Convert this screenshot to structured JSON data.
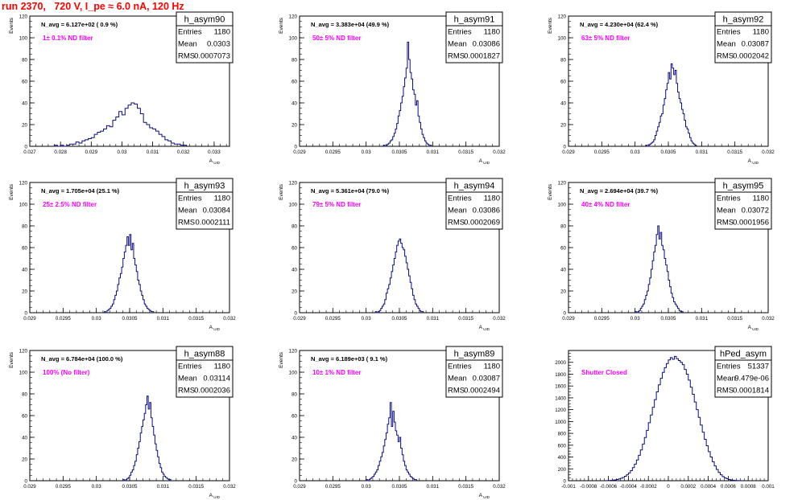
{
  "page": {
    "title": "run 2370,   720 V, I_pe ≈ 6.0 nA, 120 Hz"
  },
  "colors": {
    "hist": "#0b0b80",
    "note": "#ff00ff",
    "title": "#ff0000"
  },
  "chart_data": [
    {
      "type": "histogram",
      "hist_name": "h_asym90",
      "stats": {
        "entries": "1180",
        "mean": "0.0303",
        "rms": "0.0007073"
      },
      "navg": "N_avg = 6.127e+02 ( 0.9 %)",
      "filter_note": "1± 0.1% ND filter",
      "ylabel": "Events",
      "xlabel": "A_UID",
      "xlim": [
        0.027,
        0.0335
      ],
      "ylim": [
        0,
        120
      ],
      "yticks": [
        0,
        20,
        40,
        60,
        80,
        100,
        120
      ],
      "xticks": [
        0.027,
        0.028,
        0.029,
        0.03,
        0.031,
        0.032,
        0.033
      ],
      "xtick_labels": [
        "0.027",
        "0.028",
        "0.029",
        "0.03",
        "0.031",
        "0.032",
        "0.033"
      ],
      "bin_width": 0.0001,
      "x_start": 0.0278,
      "values": [
        1,
        0,
        1,
        0,
        1,
        2,
        2,
        4,
        3,
        5,
        6,
        7,
        8,
        11,
        13,
        14,
        16,
        19,
        18,
        24,
        27,
        32,
        29,
        35,
        38,
        40,
        39,
        35,
        30,
        22,
        20,
        17,
        16,
        14,
        11,
        9,
        6,
        5,
        3,
        2,
        2,
        1,
        1
      ]
    },
    {
      "type": "histogram",
      "hist_name": "h_asym91",
      "stats": {
        "entries": "1180",
        "mean": "0.03086",
        "rms": "0.0001827"
      },
      "navg": "N_avg = 3.383e+04 (49.9 %)",
      "filter_note": "50± 5% ND filter",
      "ylabel": "Events",
      "xlabel": "A_UID",
      "xlim": [
        0.029,
        0.032
      ],
      "ylim": [
        0,
        120
      ],
      "yticks": [
        0,
        20,
        40,
        60,
        80,
        100,
        120
      ],
      "xticks": [
        0.029,
        0.0295,
        0.03,
        0.0305,
        0.031,
        0.0315,
        0.032
      ],
      "xtick_labels": [
        "0.029",
        "0.0295",
        "0.03",
        "0.0305",
        "0.031",
        "0.0315",
        "0.032"
      ],
      "bin_width": 2e-05,
      "x_start": 0.03026,
      "values": [
        1,
        0,
        1,
        2,
        3,
        5,
        6,
        9,
        12,
        16,
        21,
        28,
        33,
        40,
        46,
        55,
        63,
        72,
        96,
        80,
        68,
        62,
        52,
        48,
        38,
        42,
        28,
        22,
        16,
        11,
        8,
        5,
        3,
        2,
        1,
        1
      ]
    },
    {
      "type": "histogram",
      "hist_name": "h_asym92",
      "stats": {
        "entries": "1180",
        "mean": "0.03087",
        "rms": "0.0002042"
      },
      "navg": "N_avg = 4.230e+04 (62.4 %)",
      "filter_note": "63± 5% ND filter",
      "ylabel": "Events",
      "xlabel": "A_UID",
      "xlim": [
        0.029,
        0.032
      ],
      "ylim": [
        0,
        120
      ],
      "yticks": [
        0,
        20,
        40,
        60,
        80,
        100,
        120
      ],
      "xticks": [
        0.029,
        0.0295,
        0.03,
        0.0305,
        0.031,
        0.0315,
        0.032
      ],
      "xtick_labels": [
        "0.029",
        "0.0295",
        "0.03",
        "0.0305",
        "0.031",
        "0.0315",
        "0.032"
      ],
      "bin_width": 2e-05,
      "x_start": 0.03016,
      "values": [
        1,
        0,
        1,
        2,
        3,
        4,
        6,
        10,
        14,
        18,
        22,
        28,
        30,
        38,
        44,
        52,
        58,
        68,
        62,
        76,
        72,
        66,
        70,
        58,
        50,
        44,
        40,
        34,
        30,
        24,
        18,
        16,
        12,
        8,
        5,
        3,
        2,
        1
      ]
    },
    {
      "type": "histogram",
      "hist_name": "h_asym93",
      "stats": {
        "entries": "1180",
        "mean": "0.03084",
        "rms": "0.0002111"
      },
      "navg": "N_avg = 1.705e+04 (25.1 %)",
      "filter_note": "25± 2.5% ND filter",
      "ylabel": "Events",
      "xlabel": "A_UID",
      "xlim": [
        0.029,
        0.032
      ],
      "ylim": [
        0,
        120
      ],
      "yticks": [
        0,
        20,
        40,
        60,
        80,
        100,
        120
      ],
      "xticks": [
        0.029,
        0.0295,
        0.03,
        0.0305,
        0.031,
        0.0315,
        0.032
      ],
      "xtick_labels": [
        "0.029",
        "0.0295",
        "0.03",
        "0.0305",
        "0.031",
        "0.0315",
        "0.032"
      ],
      "bin_width": 2e-05,
      "x_start": 0.03012,
      "values": [
        1,
        0,
        2,
        3,
        4,
        6,
        8,
        12,
        16,
        20,
        26,
        32,
        36,
        42,
        50,
        56,
        62,
        70,
        62,
        72,
        58,
        64,
        50,
        44,
        38,
        30,
        26,
        20,
        16,
        12,
        8,
        6,
        4,
        3,
        2,
        1,
        1
      ]
    },
    {
      "type": "histogram",
      "hist_name": "h_asym94",
      "stats": {
        "entries": "1180",
        "mean": "0.03086",
        "rms": "0.0002069"
      },
      "navg": "N_avg = 5.361e+04 (79.0 %)",
      "filter_note": "79± 5% ND filter",
      "ylabel": "Events",
      "xlabel": "A_UID",
      "xlim": [
        0.029,
        0.032
      ],
      "ylim": [
        0,
        120
      ],
      "yticks": [
        0,
        20,
        40,
        60,
        80,
        100,
        120
      ],
      "xticks": [
        0.029,
        0.0295,
        0.03,
        0.0305,
        0.031,
        0.0315,
        0.032
      ],
      "xtick_labels": [
        "0.029",
        "0.0295",
        "0.03",
        "0.0305",
        "0.031",
        "0.0315",
        "0.032"
      ],
      "bin_width": 2e-05,
      "x_start": 0.03014,
      "values": [
        1,
        0,
        1,
        2,
        4,
        6,
        8,
        12,
        18,
        22,
        26,
        32,
        38,
        44,
        50,
        56,
        62,
        66,
        68,
        64,
        60,
        58,
        52,
        46,
        40,
        34,
        28,
        22,
        16,
        12,
        8,
        6,
        4,
        2,
        1,
        1
      ]
    },
    {
      "type": "histogram",
      "hist_name": "h_asym95",
      "stats": {
        "entries": "1180",
        "mean": "0.03072",
        "rms": "0.0001956"
      },
      "navg": "N_avg = 2.694e+04 (39.7 %)",
      "filter_note": "40± 4% ND filter",
      "ylabel": "Events",
      "xlabel": "A_UID",
      "xlim": [
        0.029,
        0.032
      ],
      "ylim": [
        0,
        120
      ],
      "yticks": [
        0,
        20,
        40,
        60,
        80,
        100,
        120
      ],
      "xticks": [
        0.029,
        0.0295,
        0.03,
        0.0305,
        0.031,
        0.0315,
        0.032
      ],
      "xtick_labels": [
        "0.029",
        "0.0295",
        "0.03",
        "0.0305",
        "0.031",
        "0.0315",
        "0.032"
      ],
      "bin_width": 2e-05,
      "x_start": 0.03,
      "values": [
        1,
        0,
        1,
        2,
        4,
        6,
        8,
        12,
        16,
        20,
        26,
        32,
        40,
        48,
        56,
        62,
        72,
        80,
        68,
        74,
        62,
        58,
        50,
        44,
        38,
        30,
        24,
        18,
        14,
        10,
        8,
        6,
        4,
        2,
        1,
        1
      ]
    },
    {
      "type": "histogram",
      "hist_name": "h_asym88",
      "stats": {
        "entries": "1180",
        "mean": "0.03114",
        "rms": "0.0002036"
      },
      "navg": "N_avg = 6.784e+04 (100.0 %)",
      "filter_note": "100% (No filter)",
      "ylabel": "Events",
      "xlabel": "A_UID",
      "xlim": [
        0.029,
        0.032
      ],
      "ylim": [
        0,
        120
      ],
      "yticks": [
        0,
        20,
        40,
        60,
        80,
        100,
        120
      ],
      "xticks": [
        0.029,
        0.0295,
        0.03,
        0.0305,
        0.031,
        0.0315,
        0.032
      ],
      "xtick_labels": [
        "0.029",
        "0.0295",
        "0.03",
        "0.0305",
        "0.031",
        "0.0315",
        "0.032"
      ],
      "bin_width": 2e-05,
      "x_start": 0.0304,
      "values": [
        1,
        0,
        1,
        2,
        3,
        5,
        8,
        10,
        14,
        18,
        24,
        30,
        36,
        44,
        50,
        56,
        62,
        70,
        78,
        66,
        72,
        58,
        50,
        42,
        34,
        28,
        22,
        16,
        12,
        8,
        6,
        4,
        3,
        2,
        1,
        1
      ]
    },
    {
      "type": "histogram",
      "hist_name": "h_asym89",
      "stats": {
        "entries": "1180",
        "mean": "0.03087",
        "rms": "0.0002494"
      },
      "navg": "N_avg = 6.189e+03 ( 9.1 %)",
      "filter_note": "10± 1% ND filter",
      "ylabel": "Events",
      "xlabel": "A_UID",
      "xlim": [
        0.029,
        0.032
      ],
      "ylim": [
        0,
        120
      ],
      "yticks": [
        0,
        20,
        40,
        60,
        80,
        100,
        120
      ],
      "xticks": [
        0.029,
        0.0295,
        0.03,
        0.0305,
        0.031,
        0.0315,
        0.032
      ],
      "xtick_labels": [
        "0.029",
        "0.0295",
        "0.03",
        "0.0305",
        "0.031",
        "0.0315",
        "0.032"
      ],
      "bin_width": 2e-05,
      "x_start": 0.03,
      "values": [
        1,
        0,
        1,
        2,
        3,
        4,
        6,
        8,
        10,
        14,
        18,
        22,
        26,
        32,
        38,
        44,
        52,
        58,
        72,
        50,
        64,
        54,
        46,
        42,
        36,
        40,
        30,
        24,
        18,
        14,
        10,
        8,
        6,
        4,
        3,
        2,
        1,
        1
      ]
    },
    {
      "type": "histogram",
      "hist_name": "hPed_asym",
      "stats": {
        "entries": "51337",
        "mean": "9.479e-06",
        "rms": "0.0001814"
      },
      "navg": "",
      "filter_note": "Shutter Closed",
      "ylabel": "",
      "xlabel": "",
      "xlim": [
        -0.001,
        0.001
      ],
      "ylim": [
        0,
        2200
      ],
      "yticks": [
        0,
        200,
        400,
        600,
        800,
        1000,
        1200,
        1400,
        1600,
        1800,
        2000
      ],
      "xticks": [
        -0.001,
        -0.0008,
        -0.0006,
        -0.0004,
        -0.0002,
        0,
        0.0002,
        0.0004,
        0.0006,
        0.0008,
        0.001
      ],
      "xtick_labels": [
        "-0.001",
        "-0.0008",
        "-0.0006",
        "-0.0004",
        "-0.0002",
        "0",
        "0.0002",
        "0.0004",
        "0.0006",
        "0.0008",
        "0.001"
      ],
      "bin_width": 2e-05,
      "x_start": -0.00062,
      "values": [
        2,
        4,
        6,
        10,
        14,
        20,
        30,
        40,
        55,
        75,
        100,
        130,
        170,
        220,
        280,
        350,
        430,
        520,
        620,
        730,
        850,
        980,
        1110,
        1240,
        1370,
        1500,
        1620,
        1730,
        1830,
        1910,
        1980,
        2040,
        2080,
        2050,
        2100,
        2060,
        2030,
        2000,
        1960,
        1880,
        1800,
        1700,
        1580,
        1460,
        1330,
        1200,
        1070,
        940,
        820,
        700,
        590,
        490,
        400,
        320,
        250,
        190,
        140,
        100,
        70,
        50,
        34,
        22,
        14,
        9,
        5,
        3,
        2,
        1
      ]
    }
  ]
}
